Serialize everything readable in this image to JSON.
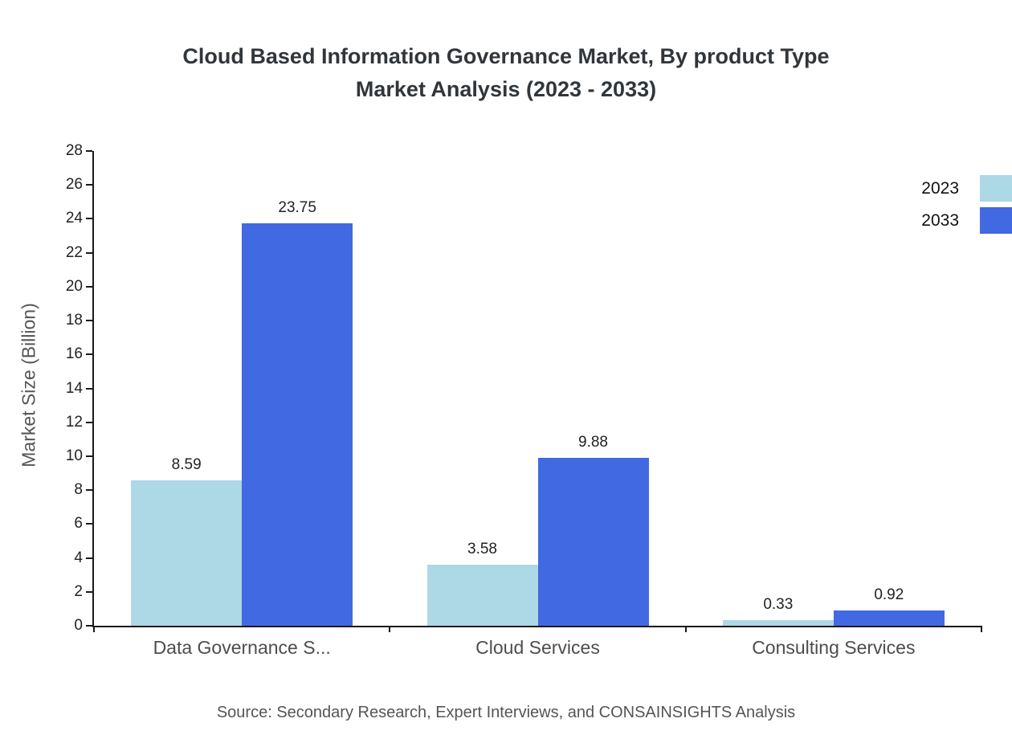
{
  "title_lines": [
    "Cloud Based Information Governance Market, By product Type",
    "Market Analysis (2023 - 2033)"
  ],
  "ylabel": "Market Size (Billion)",
  "source": "Source: Secondary Research, Expert Interviews, and CONSAINSIGHTS Analysis",
  "legend": [
    {
      "label": "2023",
      "color": "#add8e6"
    },
    {
      "label": "2033",
      "color": "#4169e1"
    }
  ],
  "chart_data": {
    "type": "bar",
    "title": "Cloud Based Information Governance Market, By product Type Market Analysis (2023 - 2033)",
    "xlabel": "",
    "ylabel": "Market Size (Billion)",
    "categories": [
      "Data Governance S...",
      "Cloud Services",
      "Consulting Services"
    ],
    "series": [
      {
        "name": "2023",
        "color": "#add8e6",
        "values": [
          8.59,
          3.58,
          0.33
        ]
      },
      {
        "name": "2033",
        "color": "#4169e1",
        "values": [
          23.75,
          9.88,
          0.92
        ]
      }
    ],
    "ylim": [
      0,
      28
    ],
    "ytick_step": 2,
    "grid": false,
    "legend_position": "top-right"
  }
}
